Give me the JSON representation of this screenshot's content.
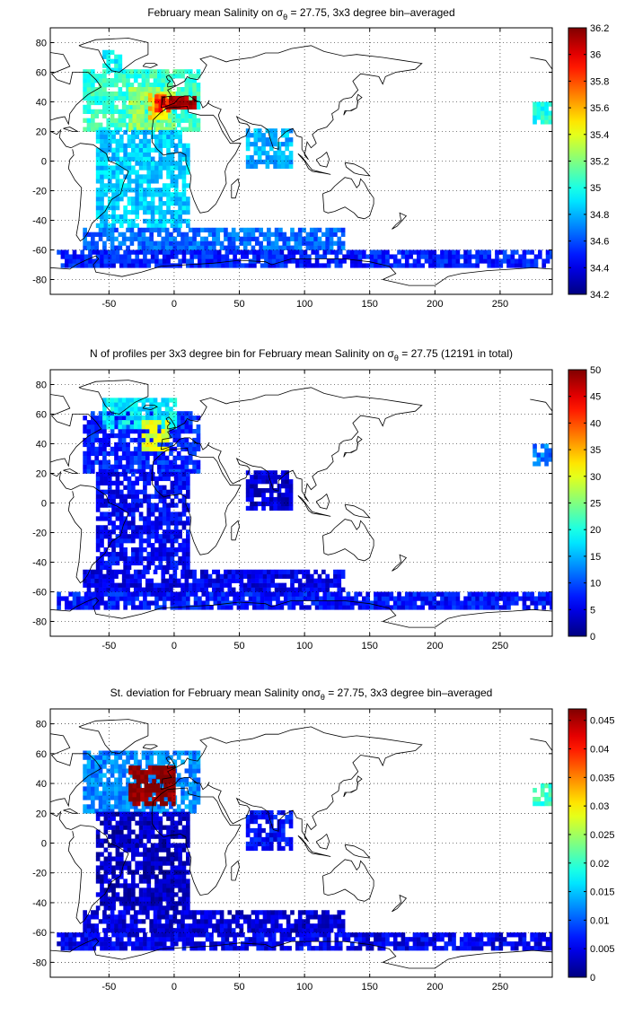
{
  "chart_data": [
    {
      "type": "heatmap",
      "title_pre": "February mean Salinity on ",
      "title_sym": "σ",
      "title_sub": "θ",
      "title_post": " = 27.75, 3x3 degree bin–averaged",
      "xticks": [
        -50,
        0,
        50,
        100,
        150,
        200,
        250
      ],
      "yticks": [
        80,
        60,
        40,
        20,
        0,
        -20,
        -40,
        -60,
        -80
      ],
      "xlim": [
        -95,
        290
      ],
      "ylim": [
        -90,
        90
      ],
      "colorbar": {
        "min": 34.2,
        "max": 36.2,
        "ticks": [
          "36.2",
          "36",
          "35.8",
          "35.6",
          "35.4",
          "35.2",
          "35",
          "34.8",
          "34.6",
          "34.4",
          "34.2"
        ]
      },
      "colormap": "jet",
      "regions": [
        {
          "lon": [
            -70,
            20
          ],
          "lat": [
            20,
            60
          ],
          "value": 35.05
        },
        {
          "lon": [
            -55,
            -40
          ],
          "lat": [
            60,
            75
          ],
          "value": 34.95
        },
        {
          "lon": [
            -35,
            0
          ],
          "lat": [
            20,
            50
          ],
          "value": 35.25
        },
        {
          "lon": [
            -20,
            -5
          ],
          "lat": [
            28,
            44
          ],
          "value": 35.55
        },
        {
          "lon": [
            -15,
            -5
          ],
          "lat": [
            33,
            44
          ],
          "value": 35.85
        },
        {
          "lon": [
            -10,
            15
          ],
          "lat": [
            35,
            42
          ],
          "value": 36.15
        },
        {
          "lon": [
            -60,
            10
          ],
          "lat": [
            -45,
            20
          ],
          "value": 34.85
        },
        {
          "lon": [
            55,
            90
          ],
          "lat": [
            -5,
            20
          ],
          "value": 34.8
        },
        {
          "lon": [
            -70,
            130
          ],
          "lat": [
            -60,
            -45
          ],
          "value": 34.65
        },
        {
          "lon": [
            -90,
            290
          ],
          "lat": [
            -72,
            -60
          ],
          "value": 34.5
        },
        {
          "lon": [
            275,
            290
          ],
          "lat": [
            25,
            40
          ],
          "value": 35.0
        }
      ]
    },
    {
      "type": "heatmap",
      "title_pre": "N of profiles per 3x3 degree bin for February mean Salinity on ",
      "title_sym": "σ",
      "title_sub": "θ",
      "title_post": " = 27.75 (12191 in total)",
      "xticks": [
        -50,
        0,
        50,
        100,
        150,
        200,
        250
      ],
      "yticks": [
        80,
        60,
        40,
        20,
        0,
        -20,
        -40,
        -60,
        -80
      ],
      "xlim": [
        -95,
        290
      ],
      "ylim": [
        -90,
        90
      ],
      "colorbar": {
        "min": 0,
        "max": 50,
        "ticks": [
          "50",
          "45",
          "40",
          "35",
          "30",
          "25",
          "20",
          "15",
          "10",
          "5",
          "0"
        ]
      },
      "colormap": "jet",
      "regions": [
        {
          "lon": [
            -70,
            20
          ],
          "lat": [
            20,
            60
          ],
          "value": 8
        },
        {
          "lon": [
            -55,
            0
          ],
          "lat": [
            50,
            70
          ],
          "value": 18
        },
        {
          "lon": [
            -25,
            -5
          ],
          "lat": [
            35,
            55
          ],
          "value": 30
        },
        {
          "lon": [
            -60,
            10
          ],
          "lat": [
            -45,
            20
          ],
          "value": 6
        },
        {
          "lon": [
            55,
            90
          ],
          "lat": [
            -5,
            20
          ],
          "value": 4
        },
        {
          "lon": [
            -70,
            130
          ],
          "lat": [
            -60,
            -45
          ],
          "value": 5
        },
        {
          "lon": [
            -90,
            290
          ],
          "lat": [
            -72,
            -60
          ],
          "value": 7
        },
        {
          "lon": [
            275,
            290
          ],
          "lat": [
            25,
            40
          ],
          "value": 12
        }
      ]
    },
    {
      "type": "heatmap",
      "title_pre": "St. deviation for February mean Salinity on",
      "title_sym": "σ",
      "title_sub": "θ",
      "title_post": " = 27.75, 3x3 degree bin–averaged",
      "xticks": [
        -50,
        0,
        50,
        100,
        150,
        200,
        250
      ],
      "yticks": [
        80,
        60,
        40,
        20,
        0,
        -20,
        -40,
        -60,
        -80
      ],
      "xlim": [
        -95,
        290
      ],
      "ylim": [
        -90,
        90
      ],
      "colorbar": {
        "min": 0,
        "max": 0.047,
        "ticks": [
          "0.045",
          "0.04",
          "0.035",
          "0.03",
          "0.025",
          "0.02",
          "0.015",
          "0.01",
          "0.005",
          "0"
        ],
        "tick_values": [
          0.045,
          0.04,
          0.035,
          0.03,
          0.025,
          0.02,
          0.015,
          0.01,
          0.005,
          0
        ]
      },
      "colormap": "jet",
      "regions": [
        {
          "lon": [
            -70,
            20
          ],
          "lat": [
            20,
            60
          ],
          "value": 0.012
        },
        {
          "lon": [
            -35,
            0
          ],
          "lat": [
            25,
            50
          ],
          "value": 0.047
        },
        {
          "lon": [
            -60,
            10
          ],
          "lat": [
            -45,
            20
          ],
          "value": 0.003
        },
        {
          "lon": [
            55,
            90
          ],
          "lat": [
            -5,
            20
          ],
          "value": 0.006
        },
        {
          "lon": [
            -70,
            130
          ],
          "lat": [
            -60,
            -45
          ],
          "value": 0.004
        },
        {
          "lon": [
            -90,
            290
          ],
          "lat": [
            -72,
            -60
          ],
          "value": 0.005
        },
        {
          "lon": [
            275,
            290
          ],
          "lat": [
            25,
            40
          ],
          "value": 0.02
        }
      ]
    }
  ]
}
